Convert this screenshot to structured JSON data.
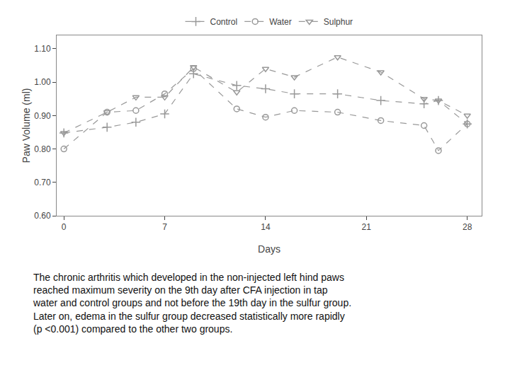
{
  "chart_data": {
    "type": "line",
    "xlabel": "Days",
    "ylabel": "Paw Volume (ml)",
    "x": [
      0,
      3,
      5,
      7,
      9,
      12,
      14,
      16,
      19,
      22,
      25,
      26,
      28
    ],
    "series": [
      {
        "name": "Control",
        "color": "#999999",
        "marker": "plus",
        "line_style": "dashed",
        "values": [
          0.848,
          0.865,
          0.88,
          0.905,
          1.025,
          0.99,
          0.98,
          0.965,
          0.965,
          0.945,
          0.935,
          0.945,
          0.875
        ]
      },
      {
        "name": "Water",
        "color": "#999999",
        "marker": "circle-open",
        "line_style": "dashed",
        "values": [
          0.8,
          0.91,
          0.915,
          0.965,
          1.04,
          0.92,
          0.895,
          0.915,
          0.91,
          0.885,
          0.87,
          0.795,
          0.875
        ]
      },
      {
        "name": "Sulphur",
        "color": "#999999",
        "marker": "triangle-down-open",
        "line_style": "dashed",
        "values": [
          0.848,
          0.91,
          0.955,
          0.955,
          1.045,
          0.97,
          1.04,
          1.015,
          1.075,
          1.03,
          0.95,
          0.945,
          0.9
        ]
      }
    ],
    "xlim": [
      -0.5,
      29
    ],
    "xticks": [
      0,
      7,
      14,
      21,
      28
    ],
    "ylim": [
      0.6,
      1.14
    ],
    "yticks": [
      {
        "value": 0.6,
        "label": "0.60"
      },
      {
        "value": 0.7,
        "label": "0.70"
      },
      {
        "value": 0.8,
        "label": "0.80"
      },
      {
        "value": 0.9,
        "label": "0.90"
      },
      {
        "value": 1.0,
        "label": "1.00"
      },
      {
        "value": 1.1,
        "label": "1.10"
      }
    ],
    "grid": false,
    "legend": "top",
    "annotations": [
      "The chronic arthritis which developed in the non-injected left hind paws",
      "reached maximum severity on the 9th day after CFA injection in tap",
      "water and control groups and not before the 19th day in the sulfur group.",
      "Later on, edema in the sulfur group decreased statistically more rapidly",
      "(p <0.001) compared to the other two groups."
    ]
  }
}
